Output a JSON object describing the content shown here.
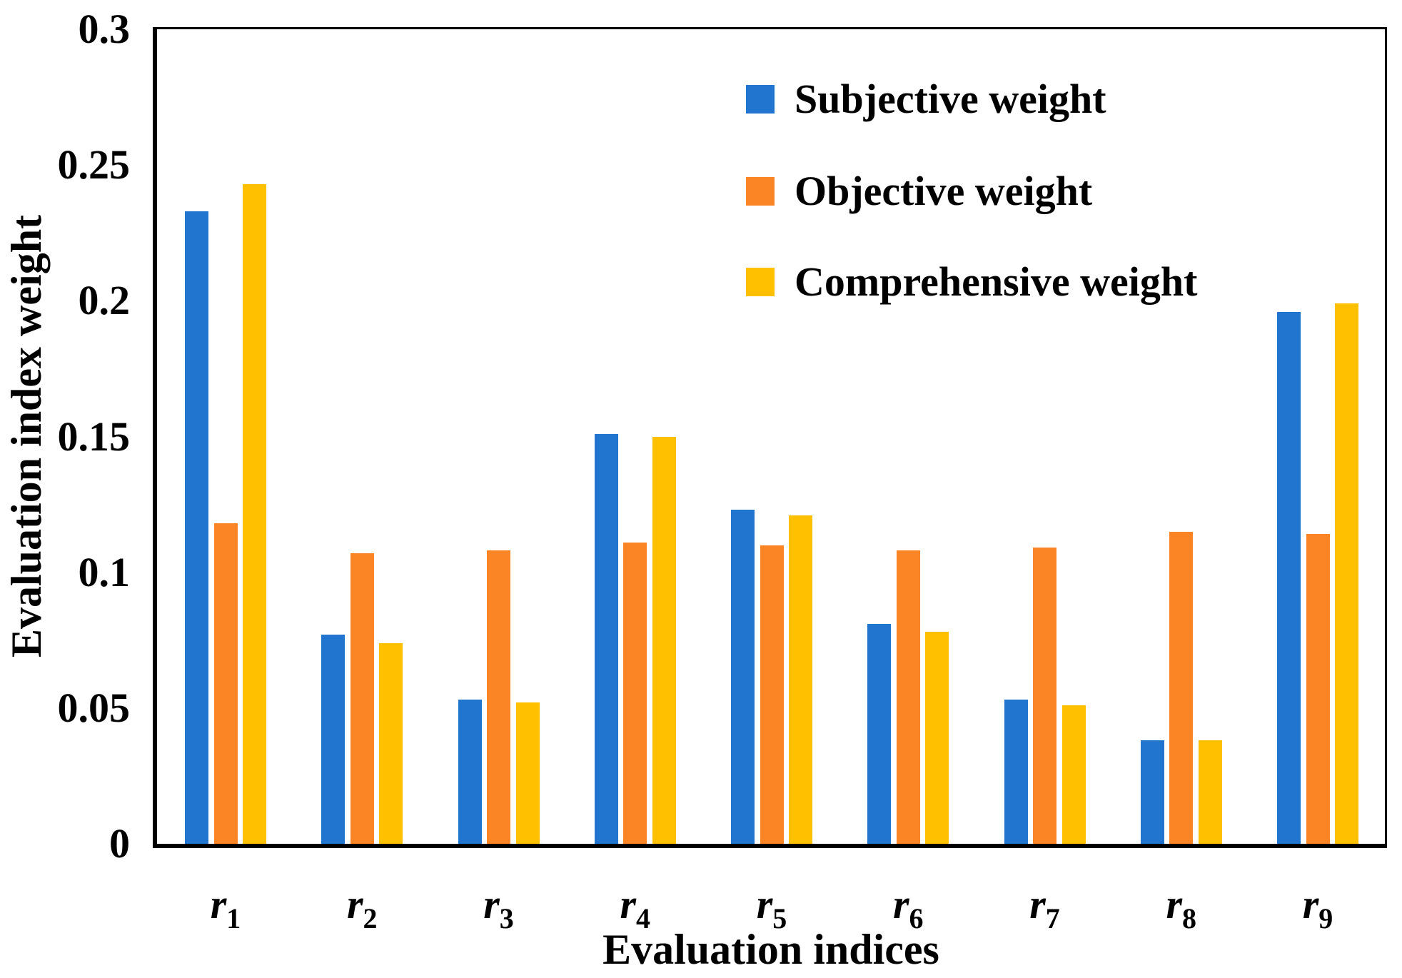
{
  "chart_data": {
    "type": "bar",
    "title": "",
    "xlabel": "Evaluation indices",
    "ylabel": "Evaluation index weight",
    "ylim": [
      0,
      0.3
    ],
    "grid": false,
    "legend_position": "inside upper right",
    "y_ticks": [
      {
        "value": 0,
        "label": "0"
      },
      {
        "value": 0.05,
        "label": "0.05"
      },
      {
        "value": 0.1,
        "label": "0.1"
      },
      {
        "value": 0.15,
        "label": "0.15"
      },
      {
        "value": 0.2,
        "label": "0.2"
      },
      {
        "value": 0.25,
        "label": "0.25"
      },
      {
        "value": 0.3,
        "label": "0.3"
      }
    ],
    "categories": [
      {
        "base": "r",
        "sub": "1"
      },
      {
        "base": "r",
        "sub": "2"
      },
      {
        "base": "r",
        "sub": "3"
      },
      {
        "base": "r",
        "sub": "4"
      },
      {
        "base": "r",
        "sub": "5"
      },
      {
        "base": "r",
        "sub": "6"
      },
      {
        "base": "r",
        "sub": "7"
      },
      {
        "base": "r",
        "sub": "8"
      },
      {
        "base": "r",
        "sub": "9"
      }
    ],
    "series": [
      {
        "name": "Subjective weight",
        "color": "#2275CE",
        "values": [
          0.233,
          0.077,
          0.053,
          0.151,
          0.123,
          0.081,
          0.053,
          0.038,
          0.196
        ]
      },
      {
        "name": "Objective weight",
        "color": "#FB8524",
        "values": [
          0.118,
          0.107,
          0.108,
          0.111,
          0.11,
          0.108,
          0.109,
          0.115,
          0.114
        ]
      },
      {
        "name": "Comprehensive weight",
        "color": "#FFC000",
        "values": [
          0.243,
          0.074,
          0.052,
          0.15,
          0.121,
          0.078,
          0.051,
          0.038,
          0.199
        ]
      }
    ]
  }
}
